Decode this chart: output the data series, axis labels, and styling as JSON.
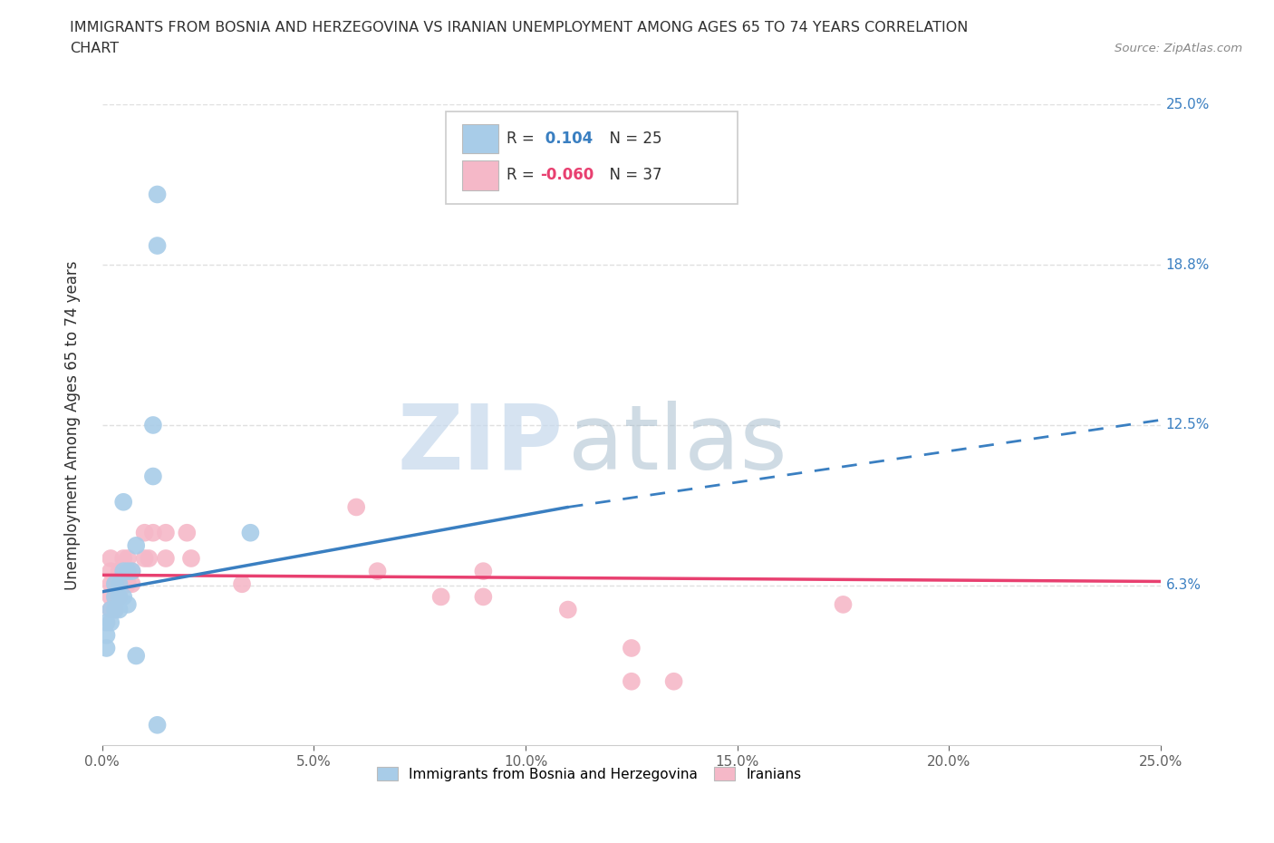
{
  "title_line1": "IMMIGRANTS FROM BOSNIA AND HERZEGOVINA VS IRANIAN UNEMPLOYMENT AMONG AGES 65 TO 74 YEARS CORRELATION",
  "title_line2": "CHART",
  "source": "Source: ZipAtlas.com",
  "ylabel": "Unemployment Among Ages 65 to 74 years",
  "xlim": [
    0,
    0.25
  ],
  "ylim": [
    0,
    0.25
  ],
  "xticks": [
    0.0,
    0.05,
    0.1,
    0.15,
    0.2,
    0.25
  ],
  "yticks": [
    0.0,
    0.0625,
    0.125,
    0.1875,
    0.25
  ],
  "ytick_labels": [
    "0.0%",
    "6.3%",
    "12.5%",
    "18.8%",
    "25.0%"
  ],
  "xtick_labels": [
    "0.0%",
    "5.0%",
    "10.0%",
    "15.0%",
    "20.0%",
    "25.0%"
  ],
  "watermark_zip": "ZIP",
  "watermark_atlas": "atlas",
  "legend_bosnia_label": "Immigrants from Bosnia and Herzegovina",
  "legend_iran_label": "Iranians",
  "R_bosnia": 0.104,
  "N_bosnia": 25,
  "R_iran": -0.06,
  "N_iran": 37,
  "bosnia_color": "#a8cce8",
  "iran_color": "#f5b8c8",
  "bosnia_line_color": "#3a7fc1",
  "iran_line_color": "#e84070",
  "bosnia_scatter": [
    [
      0.013,
      0.215
    ],
    [
      0.013,
      0.195
    ],
    [
      0.012,
      0.125
    ],
    [
      0.012,
      0.105
    ],
    [
      0.005,
      0.095
    ],
    [
      0.008,
      0.078
    ],
    [
      0.007,
      0.068
    ],
    [
      0.006,
      0.068
    ],
    [
      0.005,
      0.068
    ],
    [
      0.004,
      0.063
    ],
    [
      0.003,
      0.063
    ],
    [
      0.003,
      0.058
    ],
    [
      0.004,
      0.058
    ],
    [
      0.005,
      0.058
    ],
    [
      0.006,
      0.055
    ],
    [
      0.004,
      0.053
    ],
    [
      0.003,
      0.053
    ],
    [
      0.002,
      0.053
    ],
    [
      0.002,
      0.048
    ],
    [
      0.001,
      0.048
    ],
    [
      0.001,
      0.043
    ],
    [
      0.001,
      0.038
    ],
    [
      0.035,
      0.083
    ],
    [
      0.008,
      0.035
    ],
    [
      0.013,
      0.008
    ]
  ],
  "iran_scatter": [
    [
      0.002,
      0.073
    ],
    [
      0.002,
      0.068
    ],
    [
      0.002,
      0.063
    ],
    [
      0.002,
      0.058
    ],
    [
      0.002,
      0.053
    ],
    [
      0.003,
      0.063
    ],
    [
      0.003,
      0.058
    ],
    [
      0.003,
      0.053
    ],
    [
      0.004,
      0.068
    ],
    [
      0.004,
      0.063
    ],
    [
      0.004,
      0.058
    ],
    [
      0.005,
      0.073
    ],
    [
      0.005,
      0.063
    ],
    [
      0.006,
      0.073
    ],
    [
      0.006,
      0.068
    ],
    [
      0.006,
      0.063
    ],
    [
      0.007,
      0.068
    ],
    [
      0.007,
      0.063
    ],
    [
      0.01,
      0.083
    ],
    [
      0.01,
      0.073
    ],
    [
      0.011,
      0.073
    ],
    [
      0.012,
      0.083
    ],
    [
      0.015,
      0.083
    ],
    [
      0.015,
      0.073
    ],
    [
      0.02,
      0.083
    ],
    [
      0.021,
      0.073
    ],
    [
      0.033,
      0.063
    ],
    [
      0.06,
      0.093
    ],
    [
      0.065,
      0.068
    ],
    [
      0.08,
      0.058
    ],
    [
      0.09,
      0.068
    ],
    [
      0.09,
      0.058
    ],
    [
      0.11,
      0.053
    ],
    [
      0.125,
      0.038
    ],
    [
      0.125,
      0.025
    ],
    [
      0.135,
      0.025
    ],
    [
      0.175,
      0.055
    ]
  ],
  "background_color": "#ffffff",
  "grid_color": "#e0e0e0",
  "title_color": "#303030",
  "tick_label_color": "#606060",
  "right_label_color_bosnia": "#3a7fc1",
  "right_label_color_iran": "#e84070"
}
